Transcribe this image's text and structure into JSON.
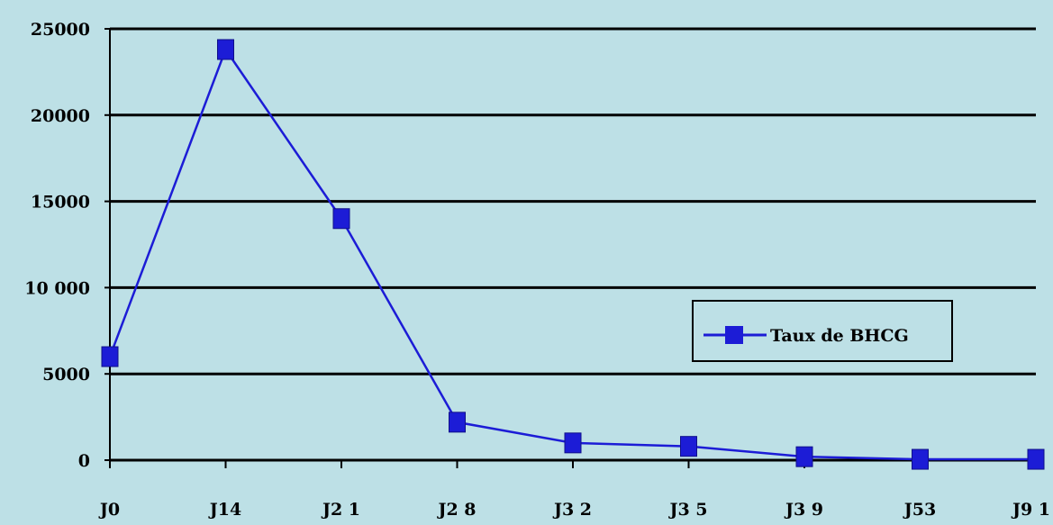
{
  "chart_data": {
    "type": "line",
    "title": "",
    "xlabel": "",
    "ylabel": "",
    "categories": [
      "J0",
      "J14",
      "J21",
      "J28",
      "J32",
      "J35",
      "J39",
      "J53",
      "J91"
    ],
    "x_tick_labels": [
      "J0",
      "J14",
      "J2 1",
      "J2 8",
      "J3 2",
      "J3 5",
      "J3 9",
      "J53",
      "J9 1"
    ],
    "y_tick_labels": [
      "25000",
      "20000",
      "15000",
      "10 000",
      "5000",
      "0"
    ],
    "y_ticks": [
      25000,
      20000,
      15000,
      10000,
      5000,
      0
    ],
    "ylim": [
      0,
      25000
    ],
    "grid": true,
    "legend_position": "right",
    "series": [
      {
        "name": "Taux de BHCG",
        "values": [
          6000,
          23800,
          14000,
          2200,
          1000,
          800,
          200,
          50,
          50
        ],
        "color": "#1c1cd6",
        "marker": "square"
      }
    ],
    "colors": {
      "background": "#bde0e6",
      "gridline": "#000000",
      "series": "#1c1cd6"
    }
  }
}
